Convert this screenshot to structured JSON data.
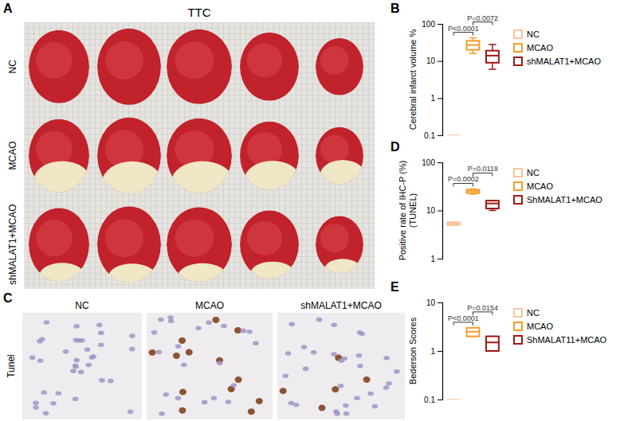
{
  "image_panels": {
    "A": {
      "label": "A",
      "title": "TTC",
      "rows": [
        "NC",
        "MCAO",
        "shMALAT1+MCAO"
      ]
    },
    "C": {
      "label": "C",
      "columns": [
        "NC",
        "MCAO",
        "shMALAT1+MCAO"
      ],
      "row": "Tunel"
    }
  },
  "chart_data": [
    {
      "type": "box",
      "panel": "B",
      "ylabel": "Cerebral infarct volume %",
      "log": "y",
      "ylim": [
        0.1,
        100
      ],
      "yticks": [
        0.1,
        1,
        10,
        100
      ],
      "tick_labels": "y",
      "series": [
        {
          "name": "NC",
          "color": "#f9c69a",
          "min": 0.1,
          "q1": 0.1,
          "median": 0.1,
          "q3": 0.1,
          "max": 0.1
        },
        {
          "name": "MCAO",
          "color": "#f39c2a",
          "min": 16,
          "q1": 20,
          "median": 27,
          "q3": 35,
          "max": 42
        },
        {
          "name": "shMALAT1+MCAO",
          "color": "#9e1a1a",
          "min": 6,
          "q1": 9,
          "median": 14,
          "q3": 19,
          "max": 28
        }
      ],
      "annotations": [
        {
          "text": "P<0.0001",
          "between": [
            "NC",
            "MCAO"
          ]
        },
        {
          "text": "P=0.0072",
          "between": [
            "MCAO",
            "shMALAT1+MCAO"
          ]
        }
      ]
    },
    {
      "type": "box",
      "panel": "D",
      "ylabel": [
        "Positive rate of IHC-P (%)",
        "(TUNEL)"
      ],
      "log": "y",
      "ylim": [
        1,
        100
      ],
      "yticks": [
        1,
        10,
        100
      ],
      "tick_labels": "y",
      "series": [
        {
          "name": "NC",
          "color": "#f9c69a",
          "min": 4.9,
          "q1": 5.0,
          "median": 5.3,
          "q3": 5.7,
          "max": 5.8
        },
        {
          "name": "MCAO",
          "color": "#f39c2a",
          "min": 22,
          "q1": 23,
          "median": 25,
          "q3": 27,
          "max": 28
        },
        {
          "name": "ShMALAT1+MCAO",
          "color": "#9e1a1a",
          "min": 10,
          "q1": 11,
          "median": 14,
          "q3": 16,
          "max": 16
        }
      ],
      "annotations": [
        {
          "text": "P=0.0002",
          "between": [
            "NC",
            "MCAO"
          ]
        },
        {
          "text": "P=0.0119",
          "between": [
            "MCAO",
            "ShMALAT1+MCAO"
          ]
        }
      ]
    },
    {
      "type": "box",
      "panel": "E",
      "ylabel": "Bederson Scores",
      "log": "y",
      "ylim": [
        0.1,
        10
      ],
      "yticks": [
        0.1,
        1,
        10
      ],
      "tick_labels": "y",
      "series": [
        {
          "name": "NC",
          "color": "#f9c69a",
          "min": 0.1,
          "q1": 0.1,
          "median": 0.1,
          "q3": 0.1,
          "max": 0.1
        },
        {
          "name": "MCAO",
          "color": "#f39c2a",
          "min": 2,
          "q1": 2,
          "median": 2.5,
          "q3": 3,
          "max": 3
        },
        {
          "name": "ShMALAT11+MCAO",
          "color": "#9e1a1a",
          "min": 1,
          "q1": 1,
          "median": 1.5,
          "q3": 2,
          "max": 2
        }
      ],
      "annotations": [
        {
          "text": "P<0.0001",
          "between": [
            "NC",
            "MCAO"
          ]
        },
        {
          "text": "P=0.0154",
          "between": [
            "MCAO",
            "ShMALAT11+MCAO"
          ]
        }
      ]
    }
  ]
}
